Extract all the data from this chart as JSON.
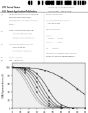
{
  "background": "#ffffff",
  "chart_bg": "#f0f0f0",
  "x_label": "Time (min)",
  "y_label": "DNA Polymerase Activity (%)",
  "xlim": [
    0,
    90
  ],
  "ylim": [
    0,
    110
  ],
  "x_ticks": [
    0,
    10,
    20,
    30,
    40,
    50,
    60,
    70,
    80,
    90
  ],
  "y_ticks": [
    0,
    20,
    40,
    60,
    80,
    100
  ],
  "curves": [
    {
      "x": [
        0,
        5,
        10,
        15,
        20,
        25,
        30,
        35,
        40,
        45,
        50,
        55,
        60,
        65,
        70,
        75,
        80,
        85,
        90
      ],
      "y": [
        100,
        95,
        85,
        70,
        52,
        35,
        20,
        11,
        5,
        2,
        1,
        0.5,
        0.3,
        0.2,
        0.1,
        0.1,
        0.1,
        0.1,
        0.1
      ],
      "color": "#aaaaaa",
      "marker": null,
      "lw": 0.6
    },
    {
      "x": [
        0,
        5,
        10,
        15,
        20,
        25,
        30,
        35,
        40,
        45,
        50,
        55,
        60,
        65,
        70,
        75,
        80,
        85,
        90
      ],
      "y": [
        100,
        97,
        90,
        78,
        62,
        44,
        28,
        16,
        8,
        4,
        2,
        1,
        0.5,
        0.3,
        0.2,
        0.1,
        0.1,
        0.1,
        0.1
      ],
      "color": "#888888",
      "marker": null,
      "lw": 0.6
    },
    {
      "x": [
        0,
        5,
        10,
        15,
        20,
        25,
        30,
        35,
        40,
        45,
        50,
        55,
        60,
        65,
        70,
        75,
        80,
        85,
        90
      ],
      "y": [
        100,
        99,
        95,
        87,
        75,
        58,
        40,
        25,
        14,
        7,
        3,
        1.5,
        0.8,
        0.4,
        0.2,
        0.1,
        0.1,
        0.1,
        0.1
      ],
      "color": "#777777",
      "marker": "s",
      "lw": 0.6
    },
    {
      "x": [
        0,
        5,
        10,
        15,
        20,
        25,
        30,
        35,
        40,
        45,
        50,
        55,
        60,
        65,
        70,
        75,
        80,
        85,
        90
      ],
      "y": [
        100,
        99,
        97,
        92,
        83,
        70,
        53,
        36,
        22,
        12,
        6,
        3,
        1.5,
        0.8,
        0.4,
        0.2,
        0.1,
        0.1,
        0.1
      ],
      "color": "#666666",
      "marker": "s",
      "lw": 0.6
    },
    {
      "x": [
        0,
        5,
        10,
        15,
        20,
        25,
        30,
        35,
        40,
        45,
        50,
        55,
        60,
        65,
        70,
        75,
        80,
        85,
        90
      ],
      "y": [
        100,
        100,
        98,
        95,
        90,
        80,
        65,
        48,
        32,
        19,
        10,
        5,
        2.5,
        1.2,
        0.6,
        0.3,
        0.2,
        0.1,
        0.1
      ],
      "color": "#555555",
      "marker": "s",
      "lw": 0.6
    },
    {
      "x": [
        0,
        5,
        10,
        15,
        20,
        25,
        30,
        35,
        40,
        45,
        50,
        55,
        60,
        65,
        70,
        75,
        80,
        85,
        90
      ],
      "y": [
        100,
        100,
        99,
        97,
        93,
        86,
        75,
        60,
        43,
        28,
        16,
        8,
        4,
        2,
        1,
        0.5,
        0.3,
        0.2,
        0.1
      ],
      "color": "#444444",
      "marker": "s",
      "lw": 0.6
    },
    {
      "x": [
        0,
        5,
        10,
        15,
        20,
        25,
        30,
        35,
        40,
        45,
        50,
        55,
        60,
        65,
        70,
        75,
        80,
        85,
        90
      ],
      "y": [
        100,
        100,
        99,
        98,
        96,
        92,
        85,
        74,
        60,
        44,
        29,
        17,
        9,
        5,
        2.5,
        1.2,
        0.6,
        0.3,
        0.2
      ],
      "color": "#333333",
      "marker": "s",
      "lw": 0.6
    },
    {
      "x": [
        0,
        10,
        20,
        30,
        40,
        50,
        60,
        70,
        80,
        90
      ],
      "y": [
        100,
        100,
        99,
        97,
        93,
        86,
        76,
        63,
        48,
        33
      ],
      "color": "#222222",
      "marker": "s",
      "lw": 0.6
    }
  ]
}
